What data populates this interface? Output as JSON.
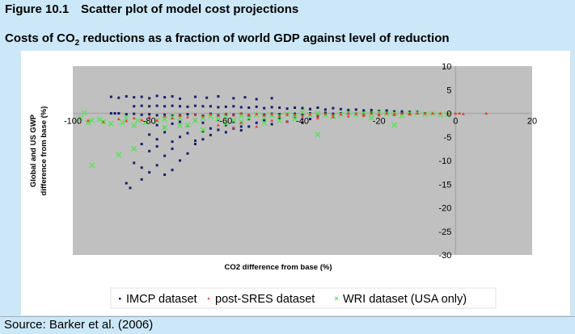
{
  "figure": {
    "number": "Figure 10.1",
    "title": "Scatter plot of model cost projections",
    "subtitle_pre": "Costs of CO",
    "subtitle_sub": "2",
    "subtitle_post": " reductions as a fraction of world GDP against level of reduction",
    "source": "Source: Barker et al. (2006)"
  },
  "chart_data": {
    "type": "scatter",
    "title": "",
    "xlabel": "CO2 difference from base (%)",
    "ylabel_line1": "Global and US GWP",
    "ylabel_line2": "difference from base (%)",
    "xlim": [
      -100,
      20
    ],
    "ylim": [
      -30,
      10
    ],
    "x_ticks": [
      -100,
      -80,
      -60,
      -40,
      -20,
      0,
      20
    ],
    "x_tick_labels": [
      "-100",
      "-80",
      "-60",
      "-40",
      "-20",
      "0",
      "20"
    ],
    "y_ticks": [
      10,
      5,
      0,
      -5,
      -10,
      -15,
      -20,
      -25,
      -30
    ],
    "y_tick_labels": [
      "10",
      "5",
      "0",
      "-5",
      "-10",
      "-15",
      "-20",
      "-25",
      "-30"
    ],
    "grid": false,
    "legend_position": "bottom",
    "colors": {
      "plot_bg": "#c0c0c0",
      "imcp": "#1a1a6e",
      "post_sres": "#e04030",
      "wri": "#60e060"
    },
    "series": [
      {
        "name": "IMCP dataset",
        "marker": "square",
        "points": [
          [
            -90,
            3.5
          ],
          [
            -88,
            3.3
          ],
          [
            -86,
            3.6
          ],
          [
            -84,
            3.4
          ],
          [
            -82,
            3.5
          ],
          [
            -80,
            3.2
          ],
          [
            -78,
            3.7
          ],
          [
            -76,
            3.4
          ],
          [
            -74,
            3.6
          ],
          [
            -72,
            3.1
          ],
          [
            -68,
            3.5
          ],
          [
            -65,
            3.3
          ],
          [
            -62,
            3.6
          ],
          [
            -58,
            3.2
          ],
          [
            -55,
            3.4
          ],
          [
            -52,
            3.0
          ],
          [
            -48,
            3.2
          ],
          [
            -84,
            1.5
          ],
          [
            -82,
            1.6
          ],
          [
            -80,
            1.5
          ],
          [
            -78,
            1.6
          ],
          [
            -76,
            1.5
          ],
          [
            -74,
            1.6
          ],
          [
            -72,
            1.5
          ],
          [
            -70,
            1.4
          ],
          [
            -68,
            1.6
          ],
          [
            -66,
            1.5
          ],
          [
            -64,
            1.5
          ],
          [
            -62,
            1.3
          ],
          [
            -60,
            1.4
          ],
          [
            -58,
            1.5
          ],
          [
            -56,
            1.3
          ],
          [
            -54,
            1.2
          ],
          [
            -52,
            1.4
          ],
          [
            -50,
            1.1
          ],
          [
            -48,
            1.3
          ],
          [
            -46,
            1.2
          ],
          [
            -44,
            1.0
          ],
          [
            -42,
            1.2
          ],
          [
            -40,
            1.1
          ],
          [
            -38,
            0.9
          ],
          [
            -36,
            1.2
          ],
          [
            -34,
            0.8
          ],
          [
            -32,
            1.1
          ],
          [
            -30,
            0.9
          ],
          [
            -28,
            0.7
          ],
          [
            -26,
            0.8
          ],
          [
            -24,
            0.6
          ],
          [
            -22,
            0.7
          ],
          [
            -20,
            0.5
          ],
          [
            -18,
            0.6
          ],
          [
            -16,
            0.4
          ],
          [
            -14,
            0.4
          ],
          [
            -12,
            0.3
          ],
          [
            -10,
            0.3
          ],
          [
            -90,
            0
          ],
          [
            -89,
            0
          ],
          [
            -88,
            0
          ],
          [
            -86,
            -0.2
          ],
          [
            -84,
            -0.1
          ],
          [
            -82,
            -0.3
          ],
          [
            -80,
            -0.2
          ],
          [
            -78,
            -0.4
          ],
          [
            -76,
            -0.3
          ],
          [
            -74,
            -0.5
          ],
          [
            -72,
            -0.4
          ],
          [
            -70,
            -0.2
          ],
          [
            -68,
            -0.3
          ],
          [
            -66,
            -0.5
          ],
          [
            -64,
            -0.1
          ],
          [
            -62,
            -0.4
          ],
          [
            -60,
            -0.2
          ],
          [
            -58,
            -0.3
          ],
          [
            -56,
            -0.1
          ],
          [
            -54,
            -0.4
          ],
          [
            -52,
            -0.2
          ],
          [
            -50,
            -0.3
          ],
          [
            -48,
            -0.1
          ],
          [
            -46,
            -0.2
          ],
          [
            -44,
            -0.3
          ],
          [
            -42,
            -0.1
          ],
          [
            -40,
            -0.2
          ],
          [
            -38,
            0
          ],
          [
            -36,
            -0.1
          ],
          [
            -34,
            0.1
          ],
          [
            -32,
            -0.1
          ],
          [
            -30,
            0
          ],
          [
            -28,
            0.1
          ],
          [
            -26,
            -0.1
          ],
          [
            -24,
            0
          ],
          [
            -22,
            0.1
          ],
          [
            -20,
            0
          ],
          [
            -18,
            0
          ],
          [
            -16,
            0.1
          ],
          [
            -14,
            0
          ],
          [
            -12,
            0
          ],
          [
            -10,
            0
          ],
          [
            -8,
            0
          ],
          [
            -78,
            -2.5
          ],
          [
            -76,
            -3.0
          ],
          [
            -74,
            -2.2
          ],
          [
            -72,
            -1.8
          ],
          [
            -70,
            -2.6
          ],
          [
            -68,
            -1.5
          ],
          [
            -66,
            -2.0
          ],
          [
            -64,
            -3.2
          ],
          [
            -62,
            -1.4
          ],
          [
            -60,
            -2.5
          ],
          [
            -58,
            -1.8
          ],
          [
            -56,
            -2.8
          ],
          [
            -54,
            -1.2
          ],
          [
            -52,
            -2.0
          ],
          [
            -50,
            -1.5
          ],
          [
            -48,
            -2.3
          ],
          [
            -46,
            -1.0
          ],
          [
            -44,
            -1.8
          ],
          [
            -42,
            -0.8
          ],
          [
            -40,
            -2.0
          ],
          [
            -38,
            -1.2
          ],
          [
            -36,
            -0.6
          ],
          [
            -80,
            -4.5
          ],
          [
            -78,
            -5.5
          ],
          [
            -76,
            -4.0
          ],
          [
            -74,
            -6.0
          ],
          [
            -72,
            -5.0
          ],
          [
            -70,
            -4.2
          ],
          [
            -68,
            -5.8
          ],
          [
            -66,
            -3.8
          ],
          [
            -64,
            -4.6
          ],
          [
            -62,
            -3.5
          ],
          [
            -60,
            -4.0
          ],
          [
            -58,
            -3.2
          ],
          [
            -56,
            -3.6
          ],
          [
            -54,
            -2.8
          ],
          [
            -82,
            -6.5
          ],
          [
            -80,
            -8.0
          ],
          [
            -78,
            -7.0
          ],
          [
            -76,
            -9.0
          ],
          [
            -74,
            -7.5
          ],
          [
            -72,
            -10.0
          ],
          [
            -70,
            -8.5
          ],
          [
            -68,
            -6.5
          ],
          [
            -66,
            -5.5
          ],
          [
            -84,
            -10.5
          ],
          [
            -82,
            -11.5
          ],
          [
            -80,
            -12.5
          ],
          [
            -78,
            -11.0
          ],
          [
            -76,
            -13.0
          ],
          [
            -74,
            -12.0
          ],
          [
            -86,
            -14.8
          ],
          [
            -85,
            -15.8
          ],
          [
            -82,
            -14.0
          ]
        ]
      },
      {
        "name": "post-SRES dataset",
        "marker": "triangle",
        "points": [
          [
            -96,
            -1.5
          ],
          [
            -92,
            -1.8
          ],
          [
            -88,
            -1.2
          ],
          [
            -86,
            -1.6
          ],
          [
            -84,
            -1.0
          ],
          [
            -82,
            -1.4
          ],
          [
            -80,
            -0.8
          ],
          [
            -78,
            -1.5
          ],
          [
            -76,
            -0.6
          ],
          [
            -74,
            -1.0
          ],
          [
            -72,
            -0.5
          ],
          [
            -70,
            -0.8
          ],
          [
            -68,
            -0.3
          ],
          [
            -66,
            -0.6
          ],
          [
            -64,
            -0.2
          ],
          [
            -62,
            -0.5
          ],
          [
            -60,
            -0.1
          ],
          [
            -58,
            -0.4
          ],
          [
            -56,
            0
          ],
          [
            -54,
            -0.3
          ],
          [
            -52,
            -0.1
          ],
          [
            -50,
            -0.4
          ],
          [
            -48,
            -0.2
          ],
          [
            -46,
            -0.5
          ],
          [
            -44,
            -0.1
          ],
          [
            -42,
            -0.3
          ],
          [
            -40,
            -0.6
          ],
          [
            -38,
            -0.2
          ],
          [
            -36,
            -0.4
          ],
          [
            -34,
            -0.1
          ],
          [
            -32,
            -0.3
          ],
          [
            -30,
            -0.2
          ],
          [
            -28,
            0
          ],
          [
            -26,
            -0.1
          ],
          [
            -24,
            -0.2
          ],
          [
            -22,
            0
          ],
          [
            -20,
            -0.1
          ],
          [
            -18,
            0
          ],
          [
            -16,
            -0.1
          ],
          [
            -14,
            0
          ],
          [
            -12,
            0
          ],
          [
            -10,
            0
          ],
          [
            -8,
            0
          ],
          [
            -6,
            0
          ],
          [
            -4,
            0
          ],
          [
            -2,
            0
          ],
          [
            0,
            0
          ],
          [
            1,
            0
          ],
          [
            2,
            -0.1
          ],
          [
            8,
            0
          ],
          [
            -62,
            -2.5
          ],
          [
            -58,
            -3.0
          ],
          [
            -56,
            -2.0
          ],
          [
            -52,
            -2.8
          ],
          [
            -48,
            -1.5
          ],
          [
            -44,
            -1.8
          ],
          [
            -40,
            -1.2
          ],
          [
            -36,
            -1.0
          ],
          [
            -32,
            -0.8
          ],
          [
            -28,
            -0.6
          ],
          [
            -24,
            -0.5
          ],
          [
            -20,
            -0.4
          ],
          [
            -16,
            -0.3
          ],
          [
            -12,
            -0.2
          ]
        ]
      },
      {
        "name": "WRI dataset (USA only)",
        "marker": "x",
        "points": [
          [
            -98,
            -1.0
          ],
          [
            -97,
            0.1
          ],
          [
            -96,
            -2.0
          ],
          [
            -95,
            -1.5
          ],
          [
            -93,
            -1.3
          ],
          [
            -92,
            -1.8
          ],
          [
            -90,
            -2.2
          ],
          [
            -87,
            -2.0
          ],
          [
            -86,
            -1.0
          ],
          [
            -84,
            -2.6
          ],
          [
            -83,
            -1.5
          ],
          [
            -81,
            -2.0
          ],
          [
            -95,
            -11.0
          ],
          [
            -88,
            -8.8
          ],
          [
            -84,
            -7.5
          ],
          [
            -78,
            -1.5
          ],
          [
            -76,
            -1.2
          ],
          [
            -74,
            -0.8
          ],
          [
            -72,
            -1.0
          ],
          [
            -70,
            -2.5
          ],
          [
            -68,
            -1.5
          ],
          [
            -66,
            -1.0
          ],
          [
            -64,
            -0.6
          ],
          [
            -62,
            -1.2
          ],
          [
            -60,
            -0.8
          ],
          [
            -58,
            -1.5
          ],
          [
            -56,
            -0.5
          ],
          [
            -54,
            -1.0
          ],
          [
            -52,
            -0.3
          ],
          [
            -50,
            -0.8
          ],
          [
            -48,
            -0.4
          ],
          [
            -46,
            -0.6
          ],
          [
            -44,
            -0.2
          ],
          [
            -42,
            -0.5
          ],
          [
            -40,
            0.2
          ],
          [
            -38,
            -0.3
          ],
          [
            -36,
            0
          ],
          [
            -34,
            -0.4
          ],
          [
            -32,
            -0.6
          ],
          [
            -30,
            -0.2
          ],
          [
            -28,
            0.1
          ],
          [
            -26,
            -0.3
          ],
          [
            -24,
            0
          ],
          [
            -22,
            -0.2
          ],
          [
            -20,
            0.2
          ],
          [
            -18,
            -0.1
          ],
          [
            -16,
            0
          ],
          [
            -14,
            -0.5
          ],
          [
            -12,
            0
          ],
          [
            -10,
            0.1
          ],
          [
            -8,
            -0.2
          ],
          [
            -6,
            -0.1
          ],
          [
            -4,
            -0.3
          ],
          [
            -2,
            -0.2
          ],
          [
            -76,
            -3.0
          ],
          [
            -72,
            -2.6
          ],
          [
            -66,
            -3.5
          ],
          [
            -60,
            -2.2
          ],
          [
            -56,
            -1.8
          ],
          [
            -50,
            -2.0
          ],
          [
            -46,
            -1.5
          ],
          [
            -42,
            -1.2
          ],
          [
            -36,
            -4.5
          ],
          [
            -16,
            -2.5
          ],
          [
            -22,
            -1.0
          ]
        ]
      }
    ]
  },
  "legend": {
    "items": [
      {
        "label": "IMCP dataset"
      },
      {
        "label": "post-SRES dataset"
      },
      {
        "label": "WRI dataset (USA only)"
      }
    ]
  }
}
